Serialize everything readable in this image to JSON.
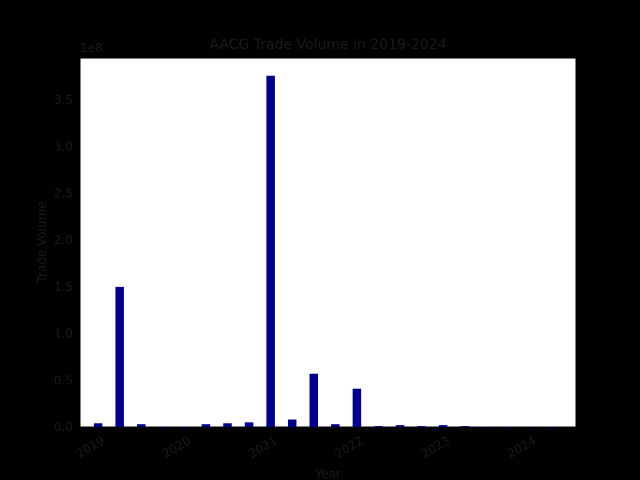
{
  "chart_data": {
    "type": "bar",
    "title": "AACG Trade Volume in 2019-2024",
    "xlabel": "Year",
    "ylabel": "Trade Volume",
    "y_offset_label": "1e8",
    "ylim": [
      0,
      3.95
    ],
    "y_ticks": [
      0.0,
      0.5,
      1.0,
      1.5,
      2.0,
      2.5,
      3.0,
      3.5
    ],
    "y_tick_labels": [
      "0.0",
      "0.5",
      "1.0",
      "1.5",
      "2.0",
      "2.5",
      "3.0",
      "3.5"
    ],
    "x_tick_labels": [
      "2019",
      "2020",
      "2021",
      "2022",
      "2023",
      "2024"
    ],
    "x_tick_positions": [
      2019,
      2020,
      2021,
      2022,
      2023,
      2024
    ],
    "xlim": [
      2018.75,
      2024.5
    ],
    "bar_color": "#00008b",
    "grid": false,
    "series": [
      {
        "x": [
          2018.96,
          2019.21,
          2019.46,
          2019.71,
          2019.96,
          2020.21,
          2020.46,
          2020.71,
          2020.96,
          2021.21,
          2021.46,
          2021.71,
          2021.96,
          2022.21,
          2022.46,
          2022.71,
          2022.96,
          2023.21,
          2023.46,
          2023.71,
          2023.96,
          2024.21
        ],
        "values": [
          0.04,
          1.5,
          0.03,
          0.005,
          0.005,
          0.03,
          0.04,
          0.05,
          3.76,
          0.08,
          0.57,
          0.03,
          0.41,
          0.01,
          0.02,
          0.01,
          0.02,
          0.01,
          0.005,
          0.005,
          0.005,
          0.005
        ]
      }
    ]
  }
}
